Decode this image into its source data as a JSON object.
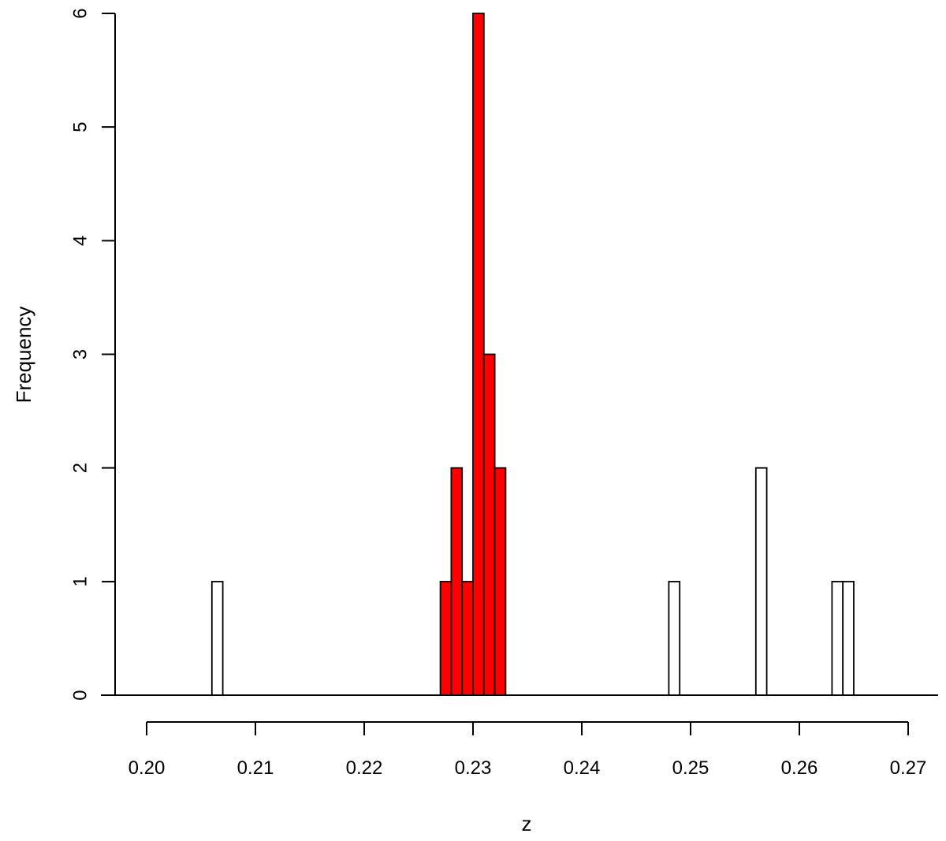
{
  "chart_data": {
    "type": "bar",
    "subtype": "histogram",
    "title": "",
    "xlabel": "z",
    "ylabel": "Frequency",
    "xlim": [
      0.2,
      0.27
    ],
    "ylim": [
      0,
      6
    ],
    "bin_width": 0.001,
    "x_ticks": [
      "0.20",
      "0.21",
      "0.22",
      "0.23",
      "0.24",
      "0.25",
      "0.26",
      "0.27"
    ],
    "y_ticks": [
      "0",
      "1",
      "2",
      "3",
      "4",
      "5",
      "6"
    ],
    "grid": false,
    "colors": {
      "highlight": "#ff0000",
      "default": "#ffffff",
      "edge": "#000000"
    },
    "bins": [
      {
        "start": 0.206,
        "end": 0.207,
        "count": 1,
        "highlight": false
      },
      {
        "start": 0.227,
        "end": 0.228,
        "count": 1,
        "highlight": true
      },
      {
        "start": 0.228,
        "end": 0.229,
        "count": 2,
        "highlight": true
      },
      {
        "start": 0.229,
        "end": 0.23,
        "count": 1,
        "highlight": true
      },
      {
        "start": 0.23,
        "end": 0.231,
        "count": 6,
        "highlight": true
      },
      {
        "start": 0.231,
        "end": 0.232,
        "count": 3,
        "highlight": true
      },
      {
        "start": 0.232,
        "end": 0.233,
        "count": 2,
        "highlight": true
      },
      {
        "start": 0.248,
        "end": 0.249,
        "count": 1,
        "highlight": false
      },
      {
        "start": 0.256,
        "end": 0.257,
        "count": 2,
        "highlight": false
      },
      {
        "start": 0.263,
        "end": 0.264,
        "count": 1,
        "highlight": false
      },
      {
        "start": 0.264,
        "end": 0.265,
        "count": 1,
        "highlight": false
      }
    ]
  }
}
